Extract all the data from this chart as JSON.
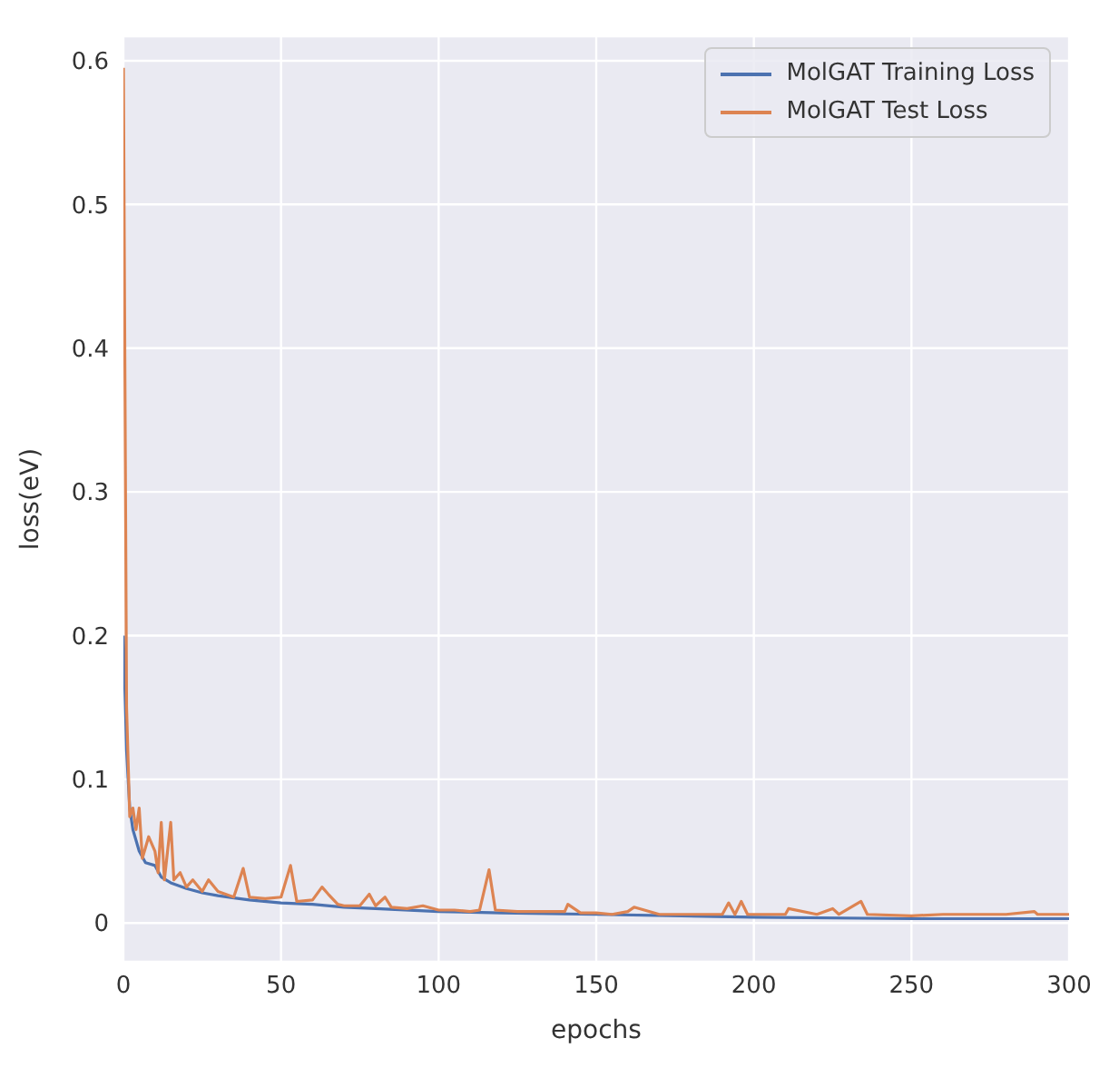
{
  "chart_data": {
    "type": "line",
    "xlabel": "epochs",
    "ylabel": "loss(eV)",
    "xlim": [
      0,
      300
    ],
    "ylim": [
      -0.027,
      0.617
    ],
    "xticks": [
      0,
      50,
      100,
      150,
      200,
      250,
      300
    ],
    "yticks": [
      0,
      0.1,
      0.2,
      0.3,
      0.4,
      0.5,
      0.6
    ],
    "grid": true,
    "legend": "top right",
    "series": [
      {
        "name": "MolGAT Training Loss",
        "color": "#4c72b0",
        "x": [
          0,
          1,
          2,
          3,
          5,
          7,
          10,
          12,
          15,
          20,
          25,
          30,
          40,
          50,
          60,
          70,
          80,
          100,
          120,
          150,
          200,
          250,
          300
        ],
        "values": [
          0.2,
          0.12,
          0.08,
          0.065,
          0.05,
          0.042,
          0.04,
          0.032,
          0.028,
          0.024,
          0.021,
          0.019,
          0.016,
          0.014,
          0.013,
          0.011,
          0.01,
          0.008,
          0.007,
          0.006,
          0.004,
          0.003,
          0.003
        ]
      },
      {
        "name": "MolGAT Test Loss",
        "color": "#dd8452",
        "x": [
          0,
          1,
          2,
          3,
          4,
          5,
          6,
          8,
          10,
          11,
          12,
          13,
          15,
          16,
          18,
          20,
          22,
          25,
          27,
          30,
          35,
          38,
          40,
          45,
          50,
          53,
          55,
          60,
          63,
          65,
          68,
          70,
          75,
          78,
          80,
          83,
          85,
          90,
          95,
          100,
          105,
          110,
          113,
          116,
          118,
          125,
          130,
          140,
          141,
          145,
          150,
          155,
          160,
          162,
          170,
          180,
          190,
          192,
          194,
          196,
          198,
          210,
          211,
          220,
          225,
          227,
          234,
          236,
          250,
          260,
          270,
          280,
          289,
          290,
          300
        ],
        "values": [
          0.595,
          0.15,
          0.074,
          0.08,
          0.065,
          0.08,
          0.045,
          0.06,
          0.05,
          0.035,
          0.07,
          0.03,
          0.07,
          0.03,
          0.035,
          0.025,
          0.03,
          0.022,
          0.03,
          0.022,
          0.018,
          0.038,
          0.018,
          0.017,
          0.018,
          0.04,
          0.015,
          0.016,
          0.025,
          0.02,
          0.013,
          0.012,
          0.012,
          0.02,
          0.012,
          0.018,
          0.011,
          0.01,
          0.012,
          0.009,
          0.009,
          0.008,
          0.009,
          0.037,
          0.009,
          0.008,
          0.008,
          0.008,
          0.013,
          0.007,
          0.007,
          0.006,
          0.008,
          0.011,
          0.006,
          0.006,
          0.006,
          0.014,
          0.006,
          0.015,
          0.006,
          0.006,
          0.01,
          0.006,
          0.01,
          0.006,
          0.015,
          0.006,
          0.005,
          0.006,
          0.006,
          0.006,
          0.008,
          0.006,
          0.006
        ]
      }
    ]
  }
}
